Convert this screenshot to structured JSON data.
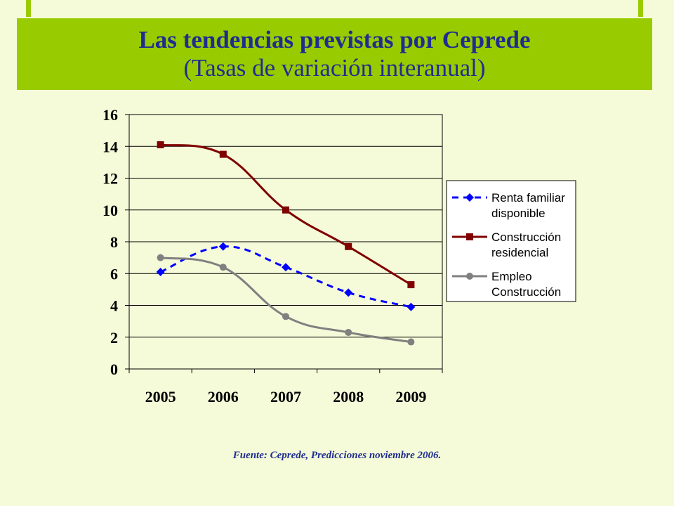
{
  "title": "Las tendencias previstas por Ceprede",
  "subtitle": "(Tasas de variación interanual)",
  "source": "Fuente: Ceprede, Predicciones noviembre 2006.",
  "colors": {
    "banner": "#99cc00",
    "background": "#f5fbd9",
    "title_text": "#1f2d8f"
  },
  "chart_data": {
    "type": "line",
    "categories": [
      "2005",
      "2006",
      "2007",
      "2008",
      "2009"
    ],
    "ylim": [
      0,
      16
    ],
    "yticks": [
      0,
      2,
      4,
      6,
      8,
      10,
      12,
      14,
      16
    ],
    "grid": true,
    "legend_position": "right",
    "series": [
      {
        "name": [
          "Renta familiar",
          "disponible"
        ],
        "values": [
          6.1,
          7.7,
          6.4,
          4.8,
          3.9
        ],
        "color": "#0000ff",
        "dash": "dashed",
        "marker": "diamond"
      },
      {
        "name": [
          "Construcción",
          "residencial"
        ],
        "values": [
          14.1,
          13.5,
          10.0,
          7.7,
          5.3
        ],
        "color": "#800000",
        "dash": "solid",
        "marker": "square"
      },
      {
        "name": [
          "Empleo",
          "Construcción"
        ],
        "values": [
          7.0,
          6.4,
          3.3,
          2.3,
          1.7
        ],
        "color": "#808080",
        "dash": "solid",
        "marker": "circle"
      }
    ]
  }
}
